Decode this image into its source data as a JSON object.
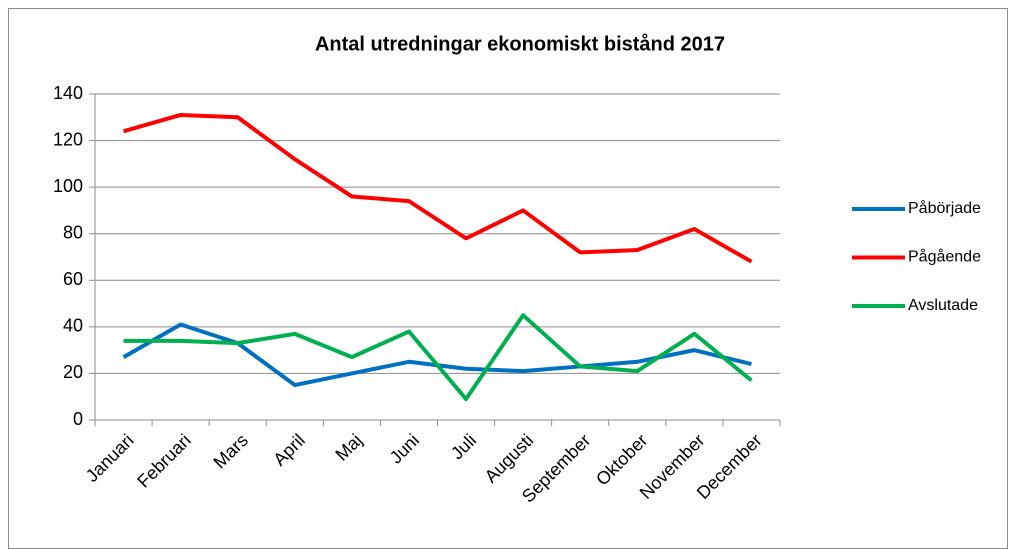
{
  "chart_data": {
    "type": "line",
    "title": "Antal utredningar ekonomiskt bistånd 2017",
    "categories": [
      "Januari",
      "Februari",
      "Mars",
      "April",
      "Maj",
      "Juni",
      "Juli",
      "Augusti",
      "September",
      "Oktober",
      "November",
      "December"
    ],
    "series": [
      {
        "name": "Påbörjade",
        "color": "#0070c0",
        "values": [
          27,
          41,
          33,
          15,
          20,
          25,
          22,
          21,
          23,
          25,
          30,
          24
        ]
      },
      {
        "name": "Pågående",
        "color": "#ff0000",
        "values": [
          124,
          131,
          130,
          112,
          96,
          94,
          78,
          90,
          72,
          73,
          82,
          68
        ]
      },
      {
        "name": "Avslutade",
        "color": "#00b050",
        "values": [
          34,
          34,
          33,
          37,
          27,
          38,
          9,
          45,
          23,
          21,
          37,
          17
        ]
      }
    ],
    "ylim": [
      0,
      140
    ],
    "yticks": [
      0,
      20,
      40,
      60,
      80,
      100,
      120,
      140
    ],
    "grid": true,
    "legend": "right"
  }
}
